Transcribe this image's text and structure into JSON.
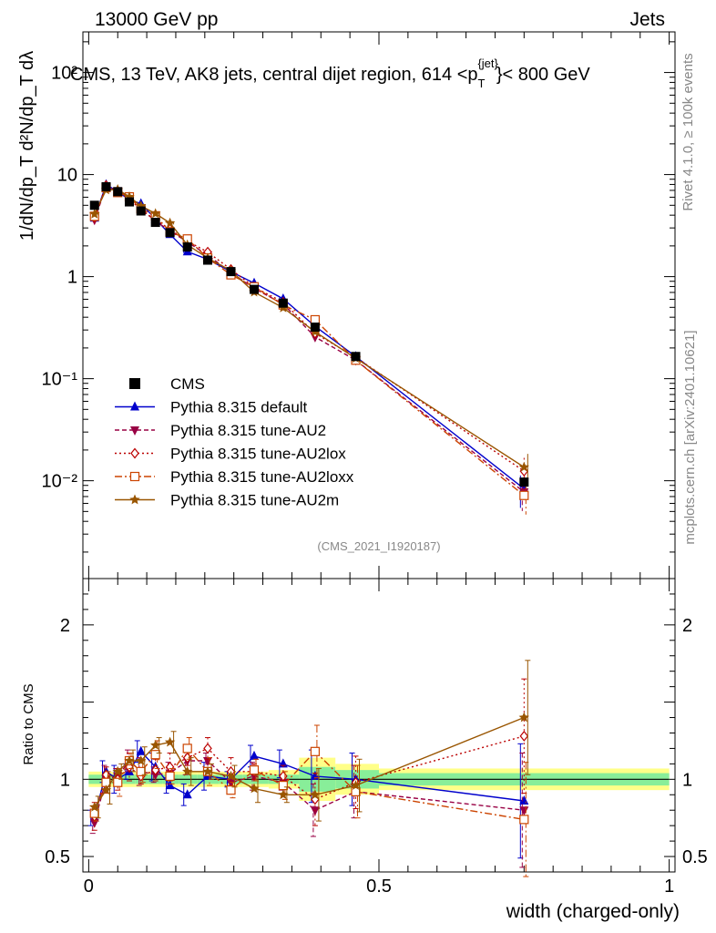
{
  "header": {
    "energy": "13000 GeV pp",
    "category": "Jets",
    "rivet_note": "Rivet 4.1.0, ≥ 100k events",
    "mcplots_note": "mcplots.cern.ch [arXiv:2401.10621]",
    "analysis_id": "(CMS_2021_I1920187)"
  },
  "chart_data": {
    "type": "line",
    "title": "CMS, 13 TeV, AK8 jets, central dijet region, 614 < p_T^{jet} < 800 GeV",
    "title_prefix": "CMS, 13 TeV, AK8 jets, central dijet region, 614 <p",
    "title_sub": "T",
    "title_sup": "{jet}",
    "title_suffix": "}< 800 GeV",
    "xlabel": "width (charged-only)",
    "ylabel_main": "1/dN/dp_T  d²N/dp_T dλ",
    "ylabel_ratio": "Ratio to CMS",
    "xlim": [
      -0.01,
      1.01
    ],
    "ylim_main": [
      0.0011,
      250
    ],
    "ylim_ratio": [
      0.4,
      2.3
    ],
    "x_ticks": [
      "0",
      "0.5",
      "1"
    ],
    "y_ticks_main": [
      "10⁻²",
      "10⁻¹",
      "1",
      "10",
      "10²"
    ],
    "y_ticks_ratio": [
      "0.5",
      "1",
      "2"
    ],
    "x": [
      0.01,
      0.03,
      0.05,
      0.07,
      0.09,
      0.115,
      0.14,
      0.17,
      0.205,
      0.245,
      0.285,
      0.335,
      0.39,
      0.46,
      0.75
    ],
    "data": {
      "name": "CMS",
      "values": [
        5.0,
        7.6,
        6.8,
        5.4,
        4.4,
        3.4,
        2.7,
        1.95,
        1.45,
        1.12,
        0.75,
        0.55,
        0.32,
        0.165,
        0.0097
      ],
      "band_inner": [
        0.03,
        0.03,
        0.03,
        0.03,
        0.03,
        0.03,
        0.03,
        0.03,
        0.03,
        0.03,
        0.03,
        0.03,
        0.08,
        0.06,
        0.04
      ],
      "band_outer": [
        0.05,
        0.05,
        0.05,
        0.05,
        0.05,
        0.05,
        0.05,
        0.05,
        0.05,
        0.05,
        0.05,
        0.06,
        0.14,
        0.1,
        0.07
      ]
    },
    "series": [
      {
        "name": "Pythia 8.315 default",
        "color": "#0000cc",
        "marker": "triangle-up",
        "dash": "",
        "ratio": [
          0.75,
          1.05,
          1.0,
          1.05,
          1.18,
          1.08,
          0.96,
          0.9,
          1.02,
          1.0,
          1.15,
          1.1,
          1.02,
          1.0,
          0.86
        ]
      },
      {
        "name": "Pythia 8.315 tune-AU2",
        "color": "#990044",
        "marker": "triangle-down",
        "dash": "5,3",
        "ratio": [
          0.72,
          1.0,
          1.02,
          1.12,
          1.05,
          1.03,
          1.04,
          1.12,
          1.12,
          0.98,
          1.02,
          0.98,
          0.8,
          0.92,
          0.8
        ]
      },
      {
        "name": "Pythia 8.315 tune-AU2lox",
        "color": "#bb0000",
        "marker": "diamond",
        "dash": "2,3",
        "ratio": [
          0.76,
          1.03,
          1.0,
          1.08,
          1.02,
          1.06,
          1.08,
          1.14,
          1.2,
          1.05,
          1.05,
          1.02,
          0.87,
          0.98,
          1.28
        ]
      },
      {
        "name": "Pythia 8.315 tune-AU2loxx",
        "color": "#cc4400",
        "marker": "open-square",
        "dash": "8,3,2,3",
        "ratio": [
          0.78,
          0.98,
          0.98,
          1.12,
          1.05,
          1.16,
          1.02,
          1.2,
          1.05,
          0.93,
          1.06,
          0.96,
          1.18,
          0.92,
          0.74
        ]
      },
      {
        "name": "Pythia 8.315 tune-AU2m",
        "color": "#995500",
        "marker": "star",
        "dash": "",
        "ratio": [
          0.82,
          0.93,
          1.05,
          1.12,
          1.12,
          1.22,
          1.24,
          1.05,
          1.05,
          1.02,
          0.94,
          0.9,
          0.9,
          0.96,
          1.4
        ]
      }
    ]
  }
}
